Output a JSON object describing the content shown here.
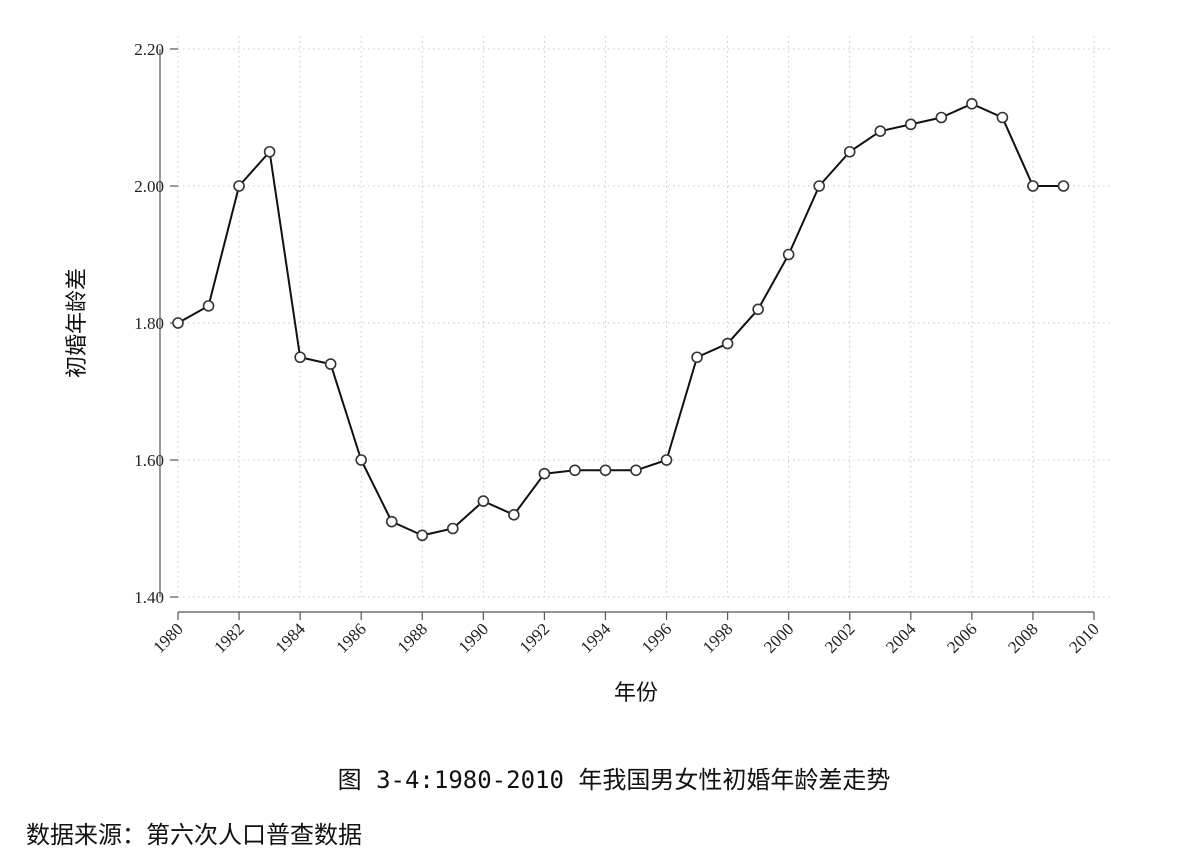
{
  "chart_data": {
    "type": "line",
    "xlabel": "年份",
    "ylabel": "初婚年龄差",
    "xlim": [
      1980,
      2010
    ],
    "ylim": [
      1.4,
      2.2
    ],
    "x_ticks": [
      "1980",
      "1982",
      "1984",
      "1986",
      "1988",
      "1990",
      "1992",
      "1994",
      "1996",
      "1998",
      "2000",
      "2002",
      "2004",
      "2006",
      "2008",
      "2010"
    ],
    "y_ticks": [
      "1.40",
      "1.60",
      "1.80",
      "2.00",
      "2.20"
    ],
    "grid": true,
    "marker": "hollow-circle",
    "color": "#111111",
    "series": [
      {
        "x": [
          1980,
          1981,
          1982,
          1983,
          1984,
          1985,
          1986,
          1987,
          1988,
          1989,
          1990,
          1991,
          1992,
          1993,
          1994,
          1995,
          1996,
          1997,
          1998,
          1999,
          2000,
          2001,
          2002,
          2003,
          2004,
          2005,
          2006,
          2007,
          2008,
          2009
        ],
        "values": [
          1.8,
          1.825,
          2.0,
          2.05,
          1.75,
          1.74,
          1.6,
          1.51,
          1.49,
          1.5,
          1.54,
          1.52,
          1.58,
          1.585,
          1.585,
          1.585,
          1.6,
          1.75,
          1.77,
          1.82,
          1.9,
          2.0,
          2.05,
          2.08,
          2.09,
          2.1,
          2.12,
          2.1,
          2.0,
          2.0
        ]
      }
    ]
  },
  "caption": "图 3-4:1980-2010 年我国男女性初婚年龄差走势",
  "source": "数据来源：第六次人口普查数据"
}
